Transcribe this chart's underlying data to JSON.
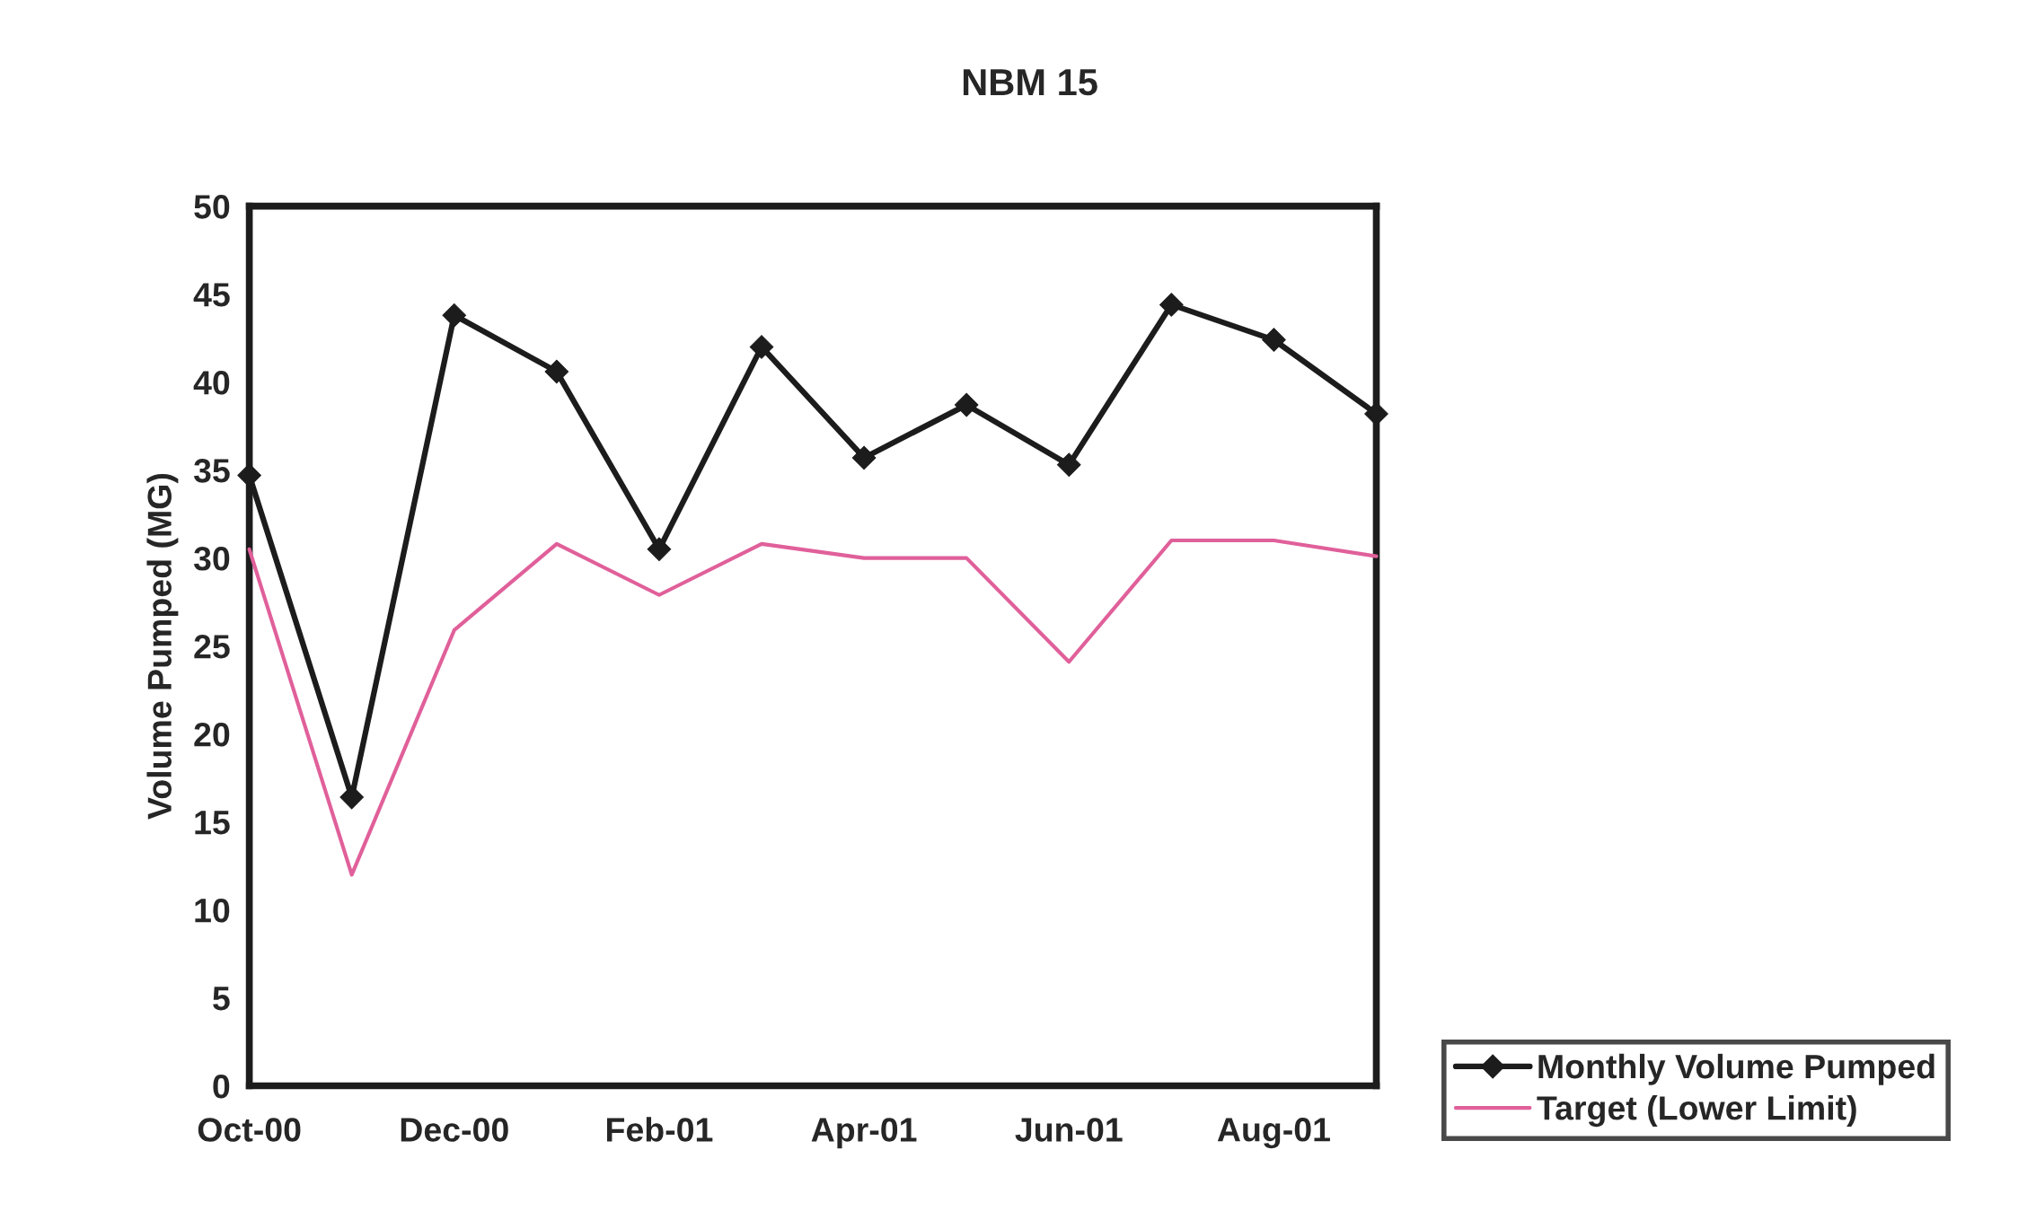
{
  "chart_data": {
    "type": "line",
    "title": "NBM 15",
    "ylabel": "Volume Pumped (MG)",
    "categories": [
      "Oct-00",
      null,
      "Dec-00",
      null,
      "Feb-01",
      null,
      "Apr-01",
      null,
      "Jun-01",
      null,
      "Aug-01",
      null
    ],
    "series": [
      {
        "name": "Monthly Volume Pumped",
        "color": "#1c1c1c",
        "marker": "diamond",
        "values": [
          34.7,
          16.4,
          43.8,
          40.6,
          30.5,
          42.0,
          35.7,
          38.7,
          35.3,
          44.4,
          42.4,
          38.2
        ]
      },
      {
        "name": "Target (Lower Limit)",
        "color": "#e0609a",
        "marker": "none",
        "values": [
          30.5,
          12.0,
          25.9,
          30.8,
          27.9,
          30.8,
          30.0,
          30.0,
          24.1,
          31.0,
          31.0,
          30.1
        ]
      }
    ],
    "ylim": [
      0,
      50
    ],
    "yticks": [
      0,
      5,
      10,
      15,
      20,
      25,
      30,
      35,
      40,
      45,
      50
    ],
    "grid": false,
    "legend": "bottom right"
  }
}
